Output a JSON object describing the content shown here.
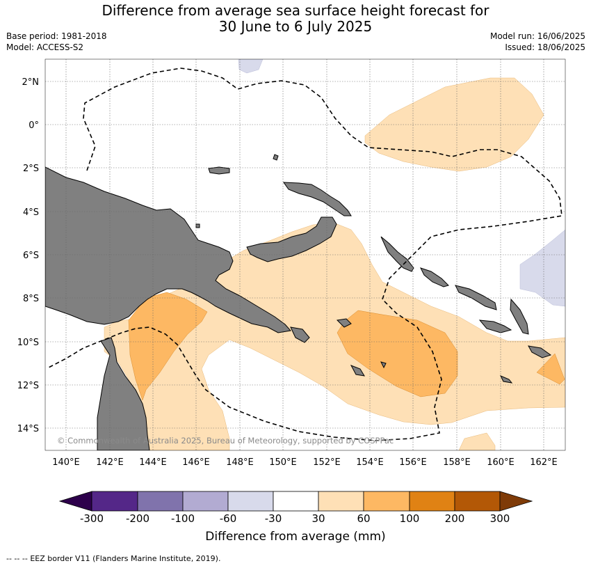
{
  "header": {
    "title_line1": "Difference from average sea surface height forecast for",
    "title_line2": "30 June to 6 July 2025",
    "base_period": "Base period: 1981-2018",
    "model": "Model: ACCESS-S2",
    "model_run": "Model run: 16/06/2025",
    "issued": "Issued: 18/06/2025"
  },
  "map": {
    "lat_labels": [
      "2°N",
      "0°",
      "2°S",
      "4°S",
      "6°S",
      "8°S",
      "10°S",
      "12°S",
      "14°S"
    ],
    "lon_labels": [
      "140°E",
      "142°E",
      "144°E",
      "146°E",
      "148°E",
      "150°E",
      "152°E",
      "154°E",
      "156°E",
      "158°E",
      "160°E",
      "162°E"
    ],
    "copyright": "© Commonwealth of Australia 2025, Bureau of Meteorology, supported by COSPPac",
    "land_color": "#808080",
    "eez_line_style": "dashed"
  },
  "colorbar": {
    "title": "Difference from average (mm)",
    "tick_labels": [
      "-300",
      "-200",
      "-100",
      "-60",
      "-30",
      "30",
      "60",
      "100",
      "200",
      "300"
    ],
    "colors": [
      "#2d004b",
      "#542788",
      "#8073ac",
      "#b2abd2",
      "#d8daeb",
      "#ffffff",
      "#fee0b6",
      "#fdb863",
      "#e08214",
      "#b35806",
      "#7f3b08"
    ]
  },
  "footer": {
    "legend_symbol": "-- -- --",
    "eez_text": "EEZ border V11 (Flanders Marine Institute, 2019)."
  }
}
